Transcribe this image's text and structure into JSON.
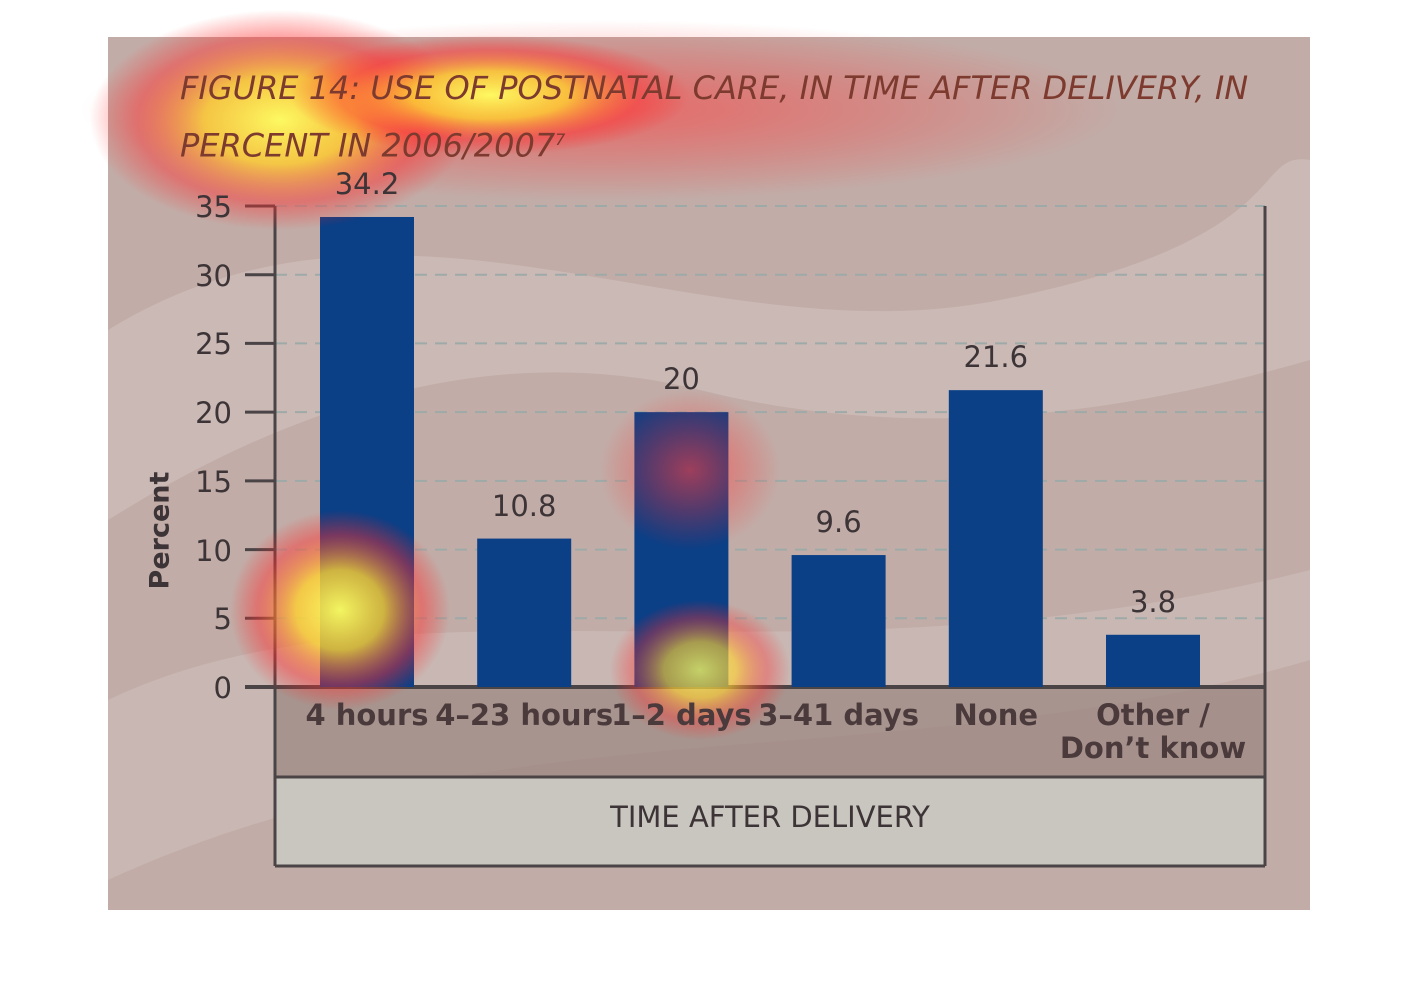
{
  "chart_data": {
    "type": "bar",
    "title": "FIGURE 14: USE OF POSTNATAL CARE, IN TIME AFTER DELIVERY, IN PERCENT IN 2006/2007",
    "title_note": "7",
    "categories": [
      "4 hours",
      "4–23 hours",
      "1–2 days",
      "3–41 days",
      "None",
      "Other / Don’t know"
    ],
    "values": [
      34.2,
      10.8,
      20,
      9.6,
      21.6,
      3.8
    ],
    "color": "#0b3f86",
    "ylim": [
      0,
      35
    ],
    "yticks": [
      0,
      5,
      10,
      15,
      20,
      25,
      30,
      35
    ],
    "grid": true,
    "y_label": "Percent",
    "x_label": "TIME AFTER DELIVERY"
  }
}
